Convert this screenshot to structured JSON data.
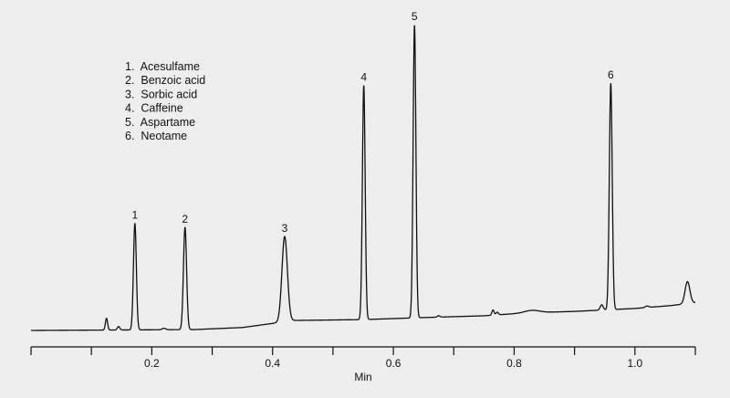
{
  "chart_data": {
    "type": "line",
    "title": "",
    "xlabel": "Min",
    "ylabel": "",
    "xlim": [
      0,
      1.1
    ],
    "ylim": [
      0,
      105
    ],
    "grid": false,
    "xticks": [
      0,
      0.1,
      0.2,
      0.3,
      0.4,
      0.5,
      0.6,
      0.7,
      0.8,
      0.9,
      1.0,
      1.1
    ],
    "xtick_labels": [
      {
        "value": 0.2,
        "label": "0.2"
      },
      {
        "value": 0.4,
        "label": "0.4"
      },
      {
        "value": 0.6,
        "label": "0.6"
      },
      {
        "value": 0.8,
        "label": "0.8"
      },
      {
        "value": 1.0,
        "label": "1.0"
      }
    ],
    "legend": {
      "placement": "top-left",
      "entries": [
        "1.  Acesulfame",
        "2.  Benzoic acid",
        "3.  Sorbic acid",
        "4.  Caffeine",
        "5.  Aspartame",
        "6.  Neotame"
      ]
    },
    "baseline": [
      [
        0,
        0
      ],
      [
        0.09,
        0.1
      ],
      [
        0.27,
        0.3
      ],
      [
        0.35,
        1.0
      ],
      [
        0.4,
        2.4
      ],
      [
        0.43,
        3.4
      ],
      [
        0.55,
        3.7
      ],
      [
        0.65,
        4.4
      ],
      [
        0.75,
        5.0
      ],
      [
        0.82,
        6.0
      ],
      [
        0.9,
        6.5
      ],
      [
        1.0,
        7.5
      ],
      [
        1.06,
        8.5
      ],
      [
        1.1,
        9.5
      ]
    ],
    "peaks": [
      {
        "label": "1",
        "rt": 0.172,
        "height": 36.4,
        "sigma": 0.0024
      },
      {
        "label": "2",
        "rt": 0.255,
        "height": 34.9,
        "sigma": 0.0026
      },
      {
        "label": "3",
        "rt": 0.42,
        "height": 29.0,
        "sigma": 0.0045
      },
      {
        "label": "4",
        "rt": 0.551,
        "height": 80.0,
        "sigma": 0.0023
      },
      {
        "label": "5",
        "rt": 0.635,
        "height": 100.0,
        "sigma": 0.0023
      },
      {
        "label": "6",
        "rt": 0.96,
        "height": 77.3,
        "sigma": 0.0024
      }
    ],
    "minor_peaks": [
      {
        "rt": 0.125,
        "height": 4.0,
        "sigma": 0.0018
      },
      {
        "rt": 0.145,
        "height": 1.2,
        "sigma": 0.002
      },
      {
        "rt": 0.22,
        "height": 0.5,
        "sigma": 0.003
      },
      {
        "rt": 0.675,
        "height": 0.5,
        "sigma": 0.002
      },
      {
        "rt": 0.765,
        "height": 1.8,
        "sigma": 0.0018
      },
      {
        "rt": 0.772,
        "height": 0.9,
        "sigma": 0.002
      },
      {
        "rt": 0.83,
        "height": 0.8,
        "sigma": 0.012
      },
      {
        "rt": 0.945,
        "height": 1.8,
        "sigma": 0.0025
      },
      {
        "rt": 1.02,
        "height": 0.5,
        "sigma": 0.003
      },
      {
        "rt": 1.087,
        "height": 7.5,
        "sigma": 0.004
      }
    ]
  }
}
